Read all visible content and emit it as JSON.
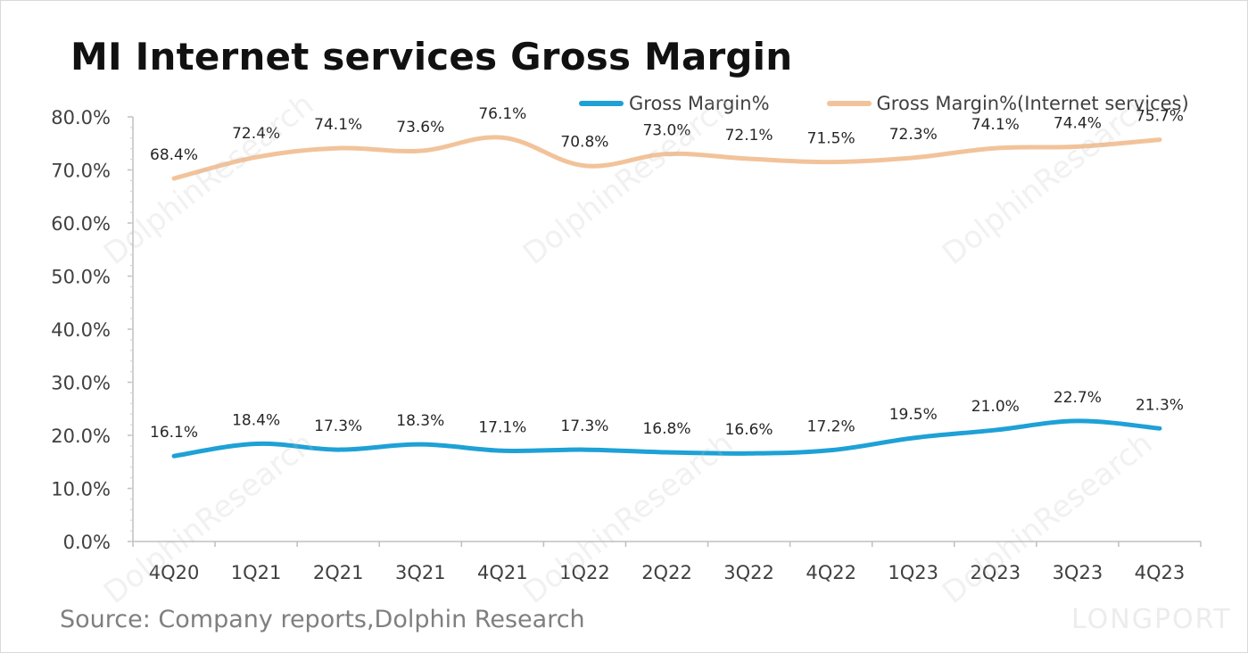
{
  "page": {
    "title": "MI Internet services Gross Margin",
    "source": "Source: Company reports,Dolphin Research",
    "watermark": "DolphinResearch",
    "brand": "LONGPORT"
  },
  "chart_data": {
    "type": "line",
    "categories": [
      "4Q20",
      "1Q21",
      "2Q21",
      "3Q21",
      "4Q21",
      "1Q22",
      "2Q22",
      "3Q22",
      "4Q22",
      "1Q23",
      "2Q23",
      "3Q23",
      "4Q23"
    ],
    "series": [
      {
        "name": "Gross Margin%",
        "color": "#1ea1d6",
        "values": [
          16.1,
          18.4,
          17.3,
          18.3,
          17.1,
          17.3,
          16.8,
          16.6,
          17.2,
          19.5,
          21.0,
          22.7,
          21.3
        ]
      },
      {
        "name": "Gross Margin%(Internet services)",
        "color": "#f2c39a",
        "values": [
          68.4,
          72.4,
          74.1,
          73.6,
          76.1,
          70.8,
          73.0,
          72.1,
          71.5,
          72.3,
          74.1,
          74.4,
          75.7
        ]
      }
    ],
    "ylim": [
      0,
      80
    ],
    "yticks": [
      "0.0%",
      "10.0%",
      "20.0%",
      "30.0%",
      "40.0%",
      "50.0%",
      "60.0%",
      "70.0%",
      "80.0%"
    ],
    "data_labels": [
      [
        "16.1%",
        "18.4%",
        "17.3%",
        "18.3%",
        "17.1%",
        "17.3%",
        "16.8%",
        "16.6%",
        "17.2%",
        "19.5%",
        "21.0%",
        "22.7%",
        "21.3%"
      ],
      [
        "68.4%",
        "72.4%",
        "74.1%",
        "73.6%",
        "76.1%",
        "70.8%",
        "73.0%",
        "72.1%",
        "71.5%",
        "72.3%",
        "74.1%",
        "74.4%",
        "75.7%"
      ]
    ],
    "legend": "top-right",
    "grid": false
  }
}
